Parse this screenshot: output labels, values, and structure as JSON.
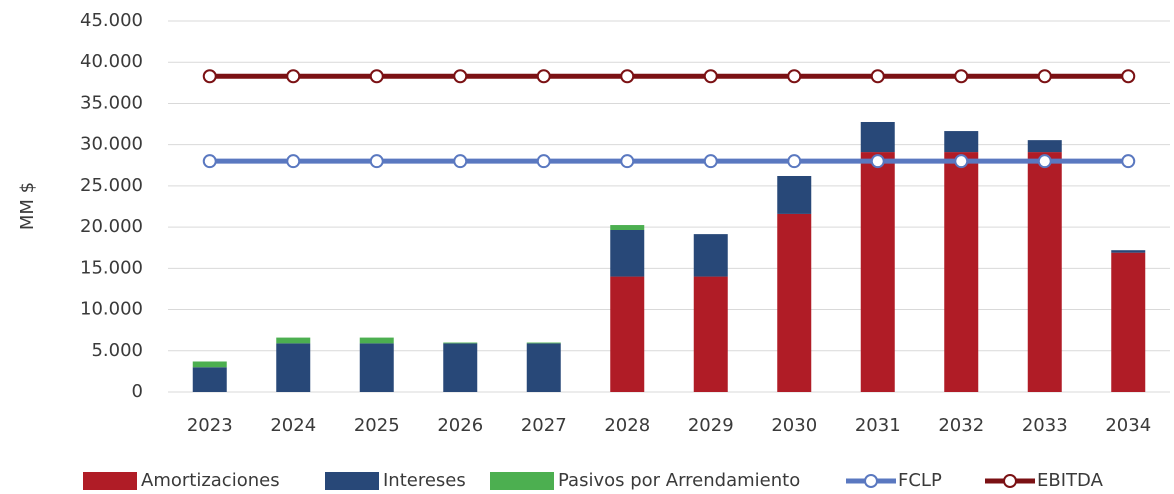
{
  "chart_data": {
    "type": "bar",
    "stacked": true,
    "y_label": "MM $",
    "categories": [
      "2023",
      "2024",
      "2025",
      "2026",
      "2027",
      "2028",
      "2029",
      "2030",
      "2031",
      "2032",
      "2033",
      "2034"
    ],
    "series": [
      {
        "name": "Amortizaciones",
        "type": "bar",
        "color": "#b01c26",
        "values": [
          0,
          0,
          0,
          0,
          0,
          14000,
          14000,
          21600,
          29100,
          29100,
          29100,
          16900
        ]
      },
      {
        "name": "Intereses",
        "type": "bar",
        "color": "#284878",
        "values": [
          3000,
          5900,
          5900,
          5900,
          5900,
          5650,
          5150,
          4600,
          3650,
          2550,
          1450,
          300
        ]
      },
      {
        "name": "Pasivos por Arrendamiento",
        "type": "bar",
        "color": "#4caf50",
        "values": [
          700,
          700,
          700,
          100,
          100,
          600,
          0,
          0,
          0,
          0,
          0,
          0
        ]
      },
      {
        "name": "FCLP",
        "type": "line",
        "color": "#5a78c0",
        "values": [
          28000,
          28000,
          28000,
          28000,
          28000,
          28000,
          28000,
          28000,
          28000,
          28000,
          28000,
          28000
        ]
      },
      {
        "name": "EBITDA",
        "type": "line",
        "color": "#7b1114",
        "values": [
          38300,
          38300,
          38300,
          38300,
          38300,
          38300,
          38300,
          38300,
          38300,
          38300,
          38300,
          38300
        ]
      }
    ],
    "ylim": [
      0,
      45000
    ],
    "yticks": [
      0,
      {
        "value": 5000,
        "label": "5.000"
      },
      {
        "value": 10000,
        "label": "10.000"
      },
      {
        "value": 15000,
        "label": "15.000"
      },
      {
        "value": 20000,
        "label": "20.000"
      },
      {
        "value": 25000,
        "label": "25.000"
      },
      {
        "value": 30000,
        "label": "30.000"
      },
      {
        "value": 35000,
        "label": "35.000"
      },
      {
        "value": 40000,
        "label": "40.000"
      },
      {
        "value": 45000,
        "label": "45.000"
      }
    ],
    "grid": true,
    "legend": "bottom"
  }
}
